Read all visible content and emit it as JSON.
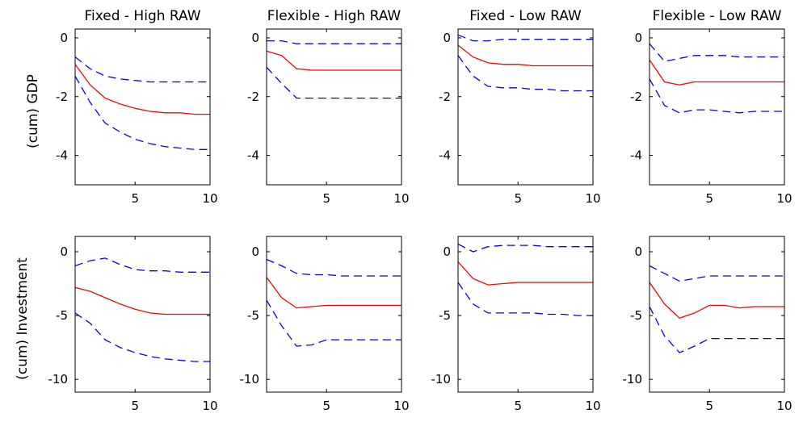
{
  "figure": {
    "row_labels": [
      "(cum) GDP",
      "(cum) Investment"
    ]
  },
  "colors": {
    "median_line": "#ff0000",
    "band_line": "#0000ff",
    "axes": "#000000",
    "background": "#ffffff"
  },
  "chart_data": [
    {
      "type": "line",
      "title": "Fixed - High RAW",
      "ylabel": "(cum) GDP",
      "xlabel": "",
      "xlim": [
        1,
        10
      ],
      "ylim": [
        -5,
        0.3
      ],
      "xticks": [
        5,
        10
      ],
      "yticks": [
        0,
        -2,
        -4
      ],
      "grid": false,
      "x": [
        1,
        2,
        3,
        4,
        5,
        6,
        7,
        8,
        9,
        10
      ],
      "series": [
        {
          "role": "upper-band",
          "style": "dashed",
          "values": [
            -0.65,
            -1.05,
            -1.3,
            -1.4,
            -1.45,
            -1.5,
            -1.5,
            -1.5,
            -1.5,
            -1.5
          ]
        },
        {
          "role": "median",
          "style": "solid",
          "values": [
            -0.9,
            -1.6,
            -2.05,
            -2.25,
            -2.4,
            -2.5,
            -2.55,
            -2.55,
            -2.6,
            -2.6
          ]
        },
        {
          "role": "lower-band",
          "style": "dashed",
          "values": [
            -1.3,
            -2.2,
            -2.9,
            -3.2,
            -3.45,
            -3.6,
            -3.7,
            -3.75,
            -3.8,
            -3.8
          ]
        }
      ]
    },
    {
      "type": "line",
      "title": "Flexible - High RAW",
      "ylabel": "",
      "xlabel": "",
      "xlim": [
        1,
        10
      ],
      "ylim": [
        -5,
        0.3
      ],
      "xticks": [
        5,
        10
      ],
      "yticks": [
        0,
        -2,
        -4
      ],
      "grid": false,
      "x": [
        1,
        2,
        3,
        4,
        5,
        6,
        7,
        8,
        9,
        10
      ],
      "series": [
        {
          "role": "upper-band",
          "style": "dashed",
          "values": [
            -0.1,
            -0.1,
            -0.2,
            -0.2,
            -0.2,
            -0.2,
            -0.2,
            -0.2,
            -0.2,
            -0.2
          ]
        },
        {
          "role": "median",
          "style": "solid",
          "values": [
            -0.45,
            -0.6,
            -1.05,
            -1.1,
            -1.1,
            -1.1,
            -1.1,
            -1.1,
            -1.1,
            -1.1
          ]
        },
        {
          "role": "lower-band",
          "style": "dashed",
          "values": [
            -1.0,
            -1.55,
            -2.05,
            -2.05,
            -2.05,
            -2.05,
            -2.05,
            -2.05,
            -2.05,
            -2.05
          ]
        }
      ]
    },
    {
      "type": "line",
      "title": "Fixed - Low RAW",
      "ylabel": "",
      "xlabel": "",
      "xlim": [
        1,
        10
      ],
      "ylim": [
        -5,
        0.3
      ],
      "xticks": [
        5,
        10
      ],
      "yticks": [
        0,
        -2,
        -4
      ],
      "grid": false,
      "x": [
        1,
        2,
        3,
        4,
        5,
        6,
        7,
        8,
        9,
        10
      ],
      "series": [
        {
          "role": "upper-band",
          "style": "dashed",
          "values": [
            0.1,
            -0.1,
            -0.1,
            -0.05,
            -0.05,
            -0.05,
            -0.05,
            -0.05,
            -0.05,
            -0.05
          ]
        },
        {
          "role": "median",
          "style": "solid",
          "values": [
            -0.25,
            -0.65,
            -0.85,
            -0.9,
            -0.9,
            -0.95,
            -0.95,
            -0.95,
            -0.95,
            -0.95
          ]
        },
        {
          "role": "lower-band",
          "style": "dashed",
          "values": [
            -0.6,
            -1.3,
            -1.65,
            -1.7,
            -1.7,
            -1.75,
            -1.75,
            -1.8,
            -1.8,
            -1.8
          ]
        }
      ]
    },
    {
      "type": "line",
      "title": "Flexible - Low RAW",
      "ylabel": "",
      "xlabel": "",
      "xlim": [
        1,
        10
      ],
      "ylim": [
        -5,
        0.3
      ],
      "xticks": [
        5,
        10
      ],
      "yticks": [
        0,
        -2,
        -4
      ],
      "grid": false,
      "x": [
        1,
        2,
        3,
        4,
        5,
        6,
        7,
        8,
        9,
        10
      ],
      "series": [
        {
          "role": "upper-band",
          "style": "dashed",
          "values": [
            -0.2,
            -0.8,
            -0.7,
            -0.6,
            -0.6,
            -0.6,
            -0.65,
            -0.65,
            -0.65,
            -0.65
          ]
        },
        {
          "role": "median",
          "style": "solid",
          "values": [
            -0.75,
            -1.5,
            -1.6,
            -1.5,
            -1.5,
            -1.5,
            -1.5,
            -1.5,
            -1.5,
            -1.5
          ]
        },
        {
          "role": "lower-band",
          "style": "dashed",
          "values": [
            -1.4,
            -2.3,
            -2.55,
            -2.45,
            -2.45,
            -2.5,
            -2.55,
            -2.5,
            -2.5,
            -2.5
          ]
        }
      ]
    },
    {
      "type": "line",
      "title": "",
      "ylabel": "(cum) Investment",
      "xlabel": "",
      "xlim": [
        1,
        10
      ],
      "ylim": [
        -11,
        1.2
      ],
      "xticks": [
        5,
        10
      ],
      "yticks": [
        0,
        -5,
        -10
      ],
      "grid": false,
      "x": [
        1,
        2,
        3,
        4,
        5,
        6,
        7,
        8,
        9,
        10
      ],
      "series": [
        {
          "role": "upper-band",
          "style": "dashed",
          "values": [
            -1.1,
            -0.7,
            -0.5,
            -1.0,
            -1.4,
            -1.5,
            -1.5,
            -1.6,
            -1.6,
            -1.6
          ]
        },
        {
          "role": "median",
          "style": "solid",
          "values": [
            -2.8,
            -3.1,
            -3.6,
            -4.1,
            -4.5,
            -4.8,
            -4.9,
            -4.9,
            -4.9,
            -4.9
          ]
        },
        {
          "role": "lower-band",
          "style": "dashed",
          "values": [
            -4.8,
            -5.6,
            -6.9,
            -7.5,
            -7.9,
            -8.2,
            -8.4,
            -8.5,
            -8.6,
            -8.6
          ]
        }
      ]
    },
    {
      "type": "line",
      "title": "",
      "ylabel": "",
      "xlabel": "",
      "xlim": [
        1,
        10
      ],
      "ylim": [
        -11,
        1.2
      ],
      "xticks": [
        5,
        10
      ],
      "yticks": [
        0,
        -5,
        -10
      ],
      "grid": false,
      "x": [
        1,
        2,
        3,
        4,
        5,
        6,
        7,
        8,
        9,
        10
      ],
      "series": [
        {
          "role": "upper-band",
          "style": "dashed",
          "values": [
            -0.6,
            -1.1,
            -1.7,
            -1.8,
            -1.8,
            -1.9,
            -1.9,
            -1.9,
            -1.9,
            -1.9
          ]
        },
        {
          "role": "median",
          "style": "solid",
          "values": [
            -2.0,
            -3.6,
            -4.4,
            -4.3,
            -4.2,
            -4.2,
            -4.2,
            -4.2,
            -4.2,
            -4.2
          ]
        },
        {
          "role": "lower-band",
          "style": "dashed",
          "values": [
            -3.8,
            -5.8,
            -7.4,
            -7.3,
            -6.9,
            -6.9,
            -6.9,
            -6.9,
            -6.9,
            -6.9
          ]
        }
      ]
    },
    {
      "type": "line",
      "title": "",
      "ylabel": "",
      "xlabel": "",
      "xlim": [
        1,
        10
      ],
      "ylim": [
        -11,
        1.2
      ],
      "xticks": [
        5,
        10
      ],
      "yticks": [
        0,
        -5,
        -10
      ],
      "grid": false,
      "x": [
        1,
        2,
        3,
        4,
        5,
        6,
        7,
        8,
        9,
        10
      ],
      "series": [
        {
          "role": "upper-band",
          "style": "dashed",
          "values": [
            0.6,
            0.0,
            0.4,
            0.5,
            0.5,
            0.5,
            0.4,
            0.4,
            0.4,
            0.4
          ]
        },
        {
          "role": "median",
          "style": "solid",
          "values": [
            -0.8,
            -2.1,
            -2.6,
            -2.5,
            -2.4,
            -2.4,
            -2.4,
            -2.4,
            -2.4,
            -2.4
          ]
        },
        {
          "role": "lower-band",
          "style": "dashed",
          "values": [
            -2.4,
            -4.1,
            -4.8,
            -4.8,
            -4.8,
            -4.8,
            -4.9,
            -4.9,
            -5.0,
            -5.0
          ]
        }
      ]
    },
    {
      "type": "line",
      "title": "",
      "ylabel": "",
      "xlabel": "",
      "xlim": [
        1,
        10
      ],
      "ylim": [
        -11,
        1.2
      ],
      "xticks": [
        5,
        10
      ],
      "yticks": [
        0,
        -5,
        -10
      ],
      "grid": false,
      "x": [
        1,
        2,
        3,
        4,
        5,
        6,
        7,
        8,
        9,
        10
      ],
      "series": [
        {
          "role": "upper-band",
          "style": "dashed",
          "values": [
            -1.1,
            -1.7,
            -2.3,
            -2.1,
            -1.9,
            -1.9,
            -1.9,
            -1.9,
            -1.9,
            -1.9
          ]
        },
        {
          "role": "median",
          "style": "solid",
          "values": [
            -2.4,
            -4.1,
            -5.2,
            -4.8,
            -4.2,
            -4.2,
            -4.4,
            -4.3,
            -4.3,
            -4.3
          ]
        },
        {
          "role": "lower-band",
          "style": "dashed",
          "values": [
            -4.3,
            -6.6,
            -7.9,
            -7.4,
            -6.8,
            -6.8,
            -6.8,
            -6.8,
            -6.8,
            -6.8
          ]
        }
      ]
    }
  ]
}
